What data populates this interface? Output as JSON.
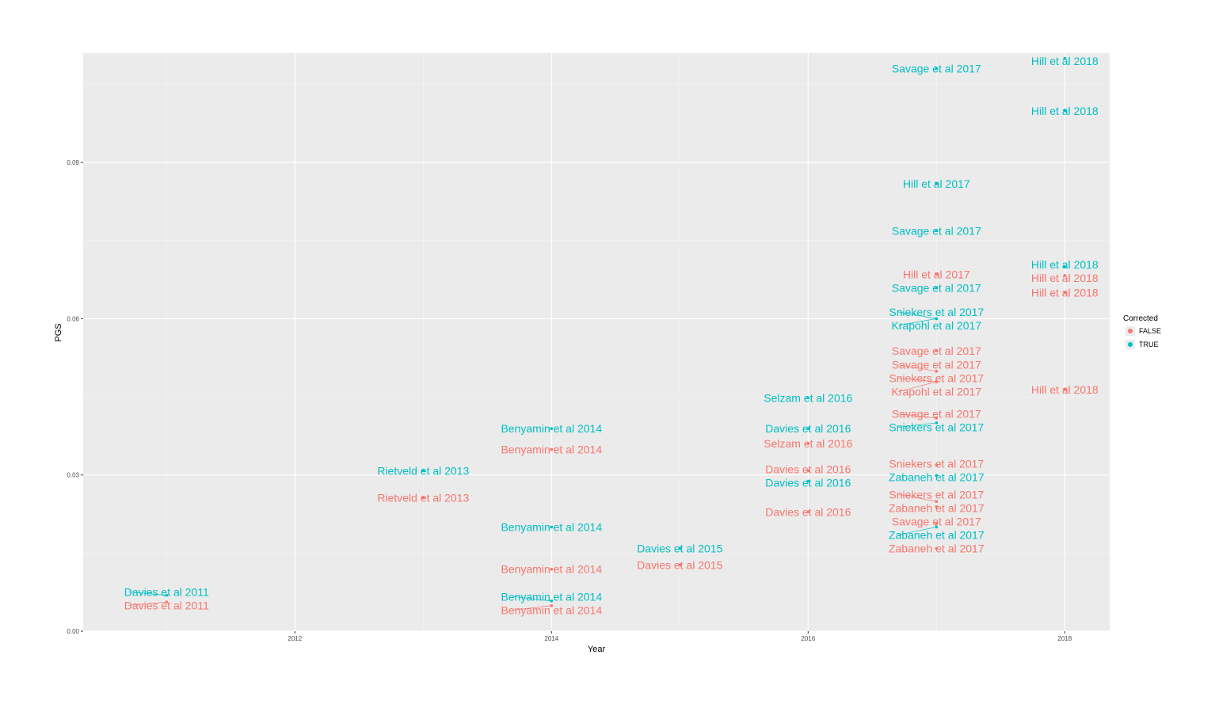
{
  "chart_data": {
    "type": "scatter",
    "title": "",
    "xlabel": "Year",
    "ylabel": "PGS",
    "xlim": [
      2010.35,
      2018.35
    ],
    "ylim": [
      0,
      0.111
    ],
    "xticks": [
      2012,
      2014,
      2016,
      2018
    ],
    "yticks": [
      0.0,
      0.03,
      0.06,
      0.09
    ],
    "ytick_labels": [
      "0.00",
      "0.03",
      "0.06",
      "0.09"
    ],
    "grid": true,
    "legend": {
      "title": "Corrected",
      "placement": "right",
      "entries": [
        "FALSE",
        "TRUE"
      ]
    },
    "colors": {
      "FALSE": "#F8766D",
      "TRUE": "#00BFC4",
      "panel": "#EBEBEB"
    },
    "points": [
      {
        "label": "Davies et al 2011",
        "x": 2011,
        "y": 0.0069,
        "corrected": "TRUE"
      },
      {
        "label": "Davies et al 2011",
        "x": 2011,
        "y": 0.0056,
        "corrected": "FALSE"
      },
      {
        "label": "Rietveld et al 2013",
        "x": 2013,
        "y": 0.0308,
        "corrected": "TRUE"
      },
      {
        "label": "Rietveld et al 2013",
        "x": 2013,
        "y": 0.0256,
        "corrected": "FALSE"
      },
      {
        "label": "Benyamin et al 2014",
        "x": 2014,
        "y": 0.0389,
        "corrected": "TRUE"
      },
      {
        "label": "Benyamin et al 2014",
        "x": 2014,
        "y": 0.0349,
        "corrected": "FALSE"
      },
      {
        "label": "Benyamin et al 2014",
        "x": 2014,
        "y": 0.02,
        "corrected": "TRUE"
      },
      {
        "label": "Benyamin et al 2014",
        "x": 2014,
        "y": 0.0119,
        "corrected": "FALSE"
      },
      {
        "label": "Benyamin et al 2014",
        "x": 2014,
        "y": 0.0058,
        "corrected": "TRUE"
      },
      {
        "label": "Benyamin et al 2014",
        "x": 2014,
        "y": 0.0049,
        "corrected": "FALSE"
      },
      {
        "label": "Davies et al 2015",
        "x": 2015,
        "y": 0.0159,
        "corrected": "TRUE"
      },
      {
        "label": "Davies et al 2015",
        "x": 2015,
        "y": 0.0127,
        "corrected": "FALSE"
      },
      {
        "label": "Selzam et al 2016",
        "x": 2016,
        "y": 0.0448,
        "corrected": "TRUE"
      },
      {
        "label": "Selzam et al 2016",
        "x": 2016,
        "y": 0.036,
        "corrected": "FALSE"
      },
      {
        "label": "Davies et al 2016",
        "x": 2016,
        "y": 0.0389,
        "corrected": "TRUE"
      },
      {
        "label": "Davies et al 2016",
        "x": 2016,
        "y": 0.0308,
        "corrected": "FALSE"
      },
      {
        "label": "Davies et al 2016",
        "x": 2016,
        "y": 0.0288,
        "corrected": "TRUE"
      },
      {
        "label": "Davies et al 2016",
        "x": 2016,
        "y": 0.0229,
        "corrected": "FALSE"
      },
      {
        "label": "Savage et al 2017",
        "x": 2017,
        "y": 0.108,
        "corrected": "TRUE"
      },
      {
        "label": "Hill et al 2017",
        "x": 2017,
        "y": 0.0859,
        "corrected": "TRUE"
      },
      {
        "label": "Savage et al 2017",
        "x": 2017,
        "y": 0.0769,
        "corrected": "TRUE"
      },
      {
        "label": "Hill et al 2017",
        "x": 2017,
        "y": 0.0685,
        "corrected": "FALSE"
      },
      {
        "label": "Savage et al 2017",
        "x": 2017,
        "y": 0.0659,
        "corrected": "TRUE"
      },
      {
        "label": "Sniekers et al 2017",
        "x": 2017,
        "y": 0.06,
        "corrected": "TRUE"
      },
      {
        "label": "Krapohl et al 2017",
        "x": 2017,
        "y": 0.06,
        "corrected": "TRUE"
      },
      {
        "label": "Savage et al 2017",
        "x": 2017,
        "y": 0.0538,
        "corrected": "FALSE"
      },
      {
        "label": "Savage et al 2017",
        "x": 2017,
        "y": 0.0499,
        "corrected": "FALSE"
      },
      {
        "label": "Sniekers et al 2017",
        "x": 2017,
        "y": 0.0479,
        "corrected": "FALSE"
      },
      {
        "label": "Krapohl et al 2017",
        "x": 2017,
        "y": 0.0479,
        "corrected": "FALSE"
      },
      {
        "label": "Savage et al 2017",
        "x": 2017,
        "y": 0.0409,
        "corrected": "FALSE"
      },
      {
        "label": "Sniekers et al 2017",
        "x": 2017,
        "y": 0.04,
        "corrected": "TRUE"
      },
      {
        "label": "Sniekers et al 2017",
        "x": 2017,
        "y": 0.0319,
        "corrected": "FALSE"
      },
      {
        "label": "Zabaneh et al 2017",
        "x": 2017,
        "y": 0.0299,
        "corrected": "TRUE"
      },
      {
        "label": "Sniekers et al 2017",
        "x": 2017,
        "y": 0.0249,
        "corrected": "FALSE"
      },
      {
        "label": "Zabaneh et al 2017",
        "x": 2017,
        "y": 0.0239,
        "corrected": "FALSE"
      },
      {
        "label": "Savage et al 2017",
        "x": 2017,
        "y": 0.0207,
        "corrected": "FALSE"
      },
      {
        "label": "Zabaneh et al 2017",
        "x": 2017,
        "y": 0.02,
        "corrected": "TRUE"
      },
      {
        "label": "Zabaneh et al 2017",
        "x": 2017,
        "y": 0.0159,
        "corrected": "FALSE"
      },
      {
        "label": "Hill et al 2018",
        "x": 2018,
        "y": 0.11,
        "corrected": "TRUE"
      },
      {
        "label": "Hill et al 2018",
        "x": 2018,
        "y": 0.0999,
        "corrected": "TRUE"
      },
      {
        "label": "Hill et al 2018",
        "x": 2018,
        "y": 0.0699,
        "corrected": "TRUE"
      },
      {
        "label": "Hill et al 2018",
        "x": 2018,
        "y": 0.0683,
        "corrected": "FALSE"
      },
      {
        "label": "Hill et al 2018",
        "x": 2018,
        "y": 0.065,
        "corrected": "FALSE"
      },
      {
        "label": "Hill et al 2018",
        "x": 2018,
        "y": 0.0464,
        "corrected": "FALSE"
      }
    ]
  }
}
